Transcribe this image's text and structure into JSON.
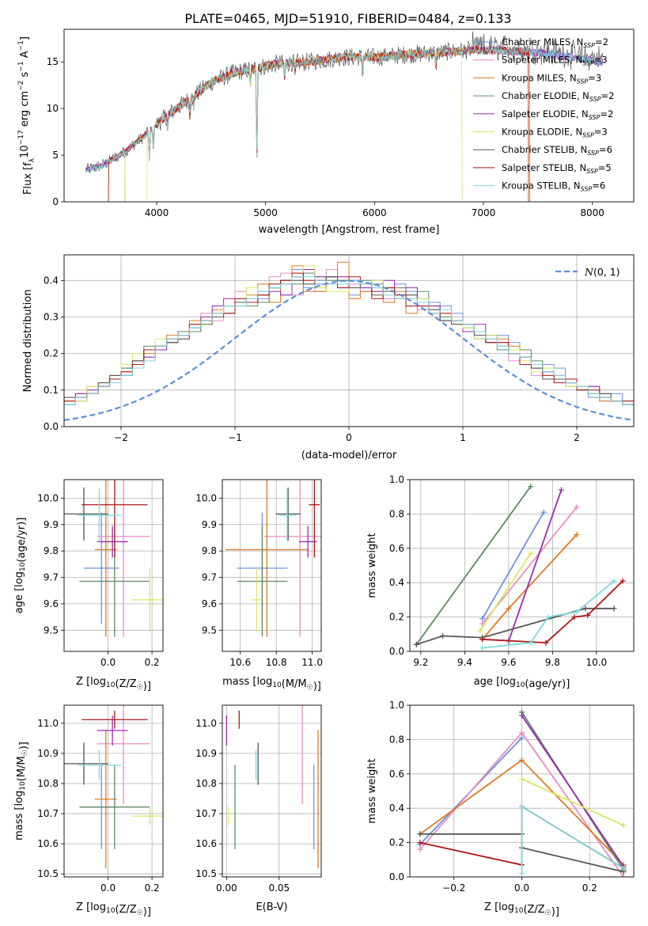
{
  "figure_title": "PLATE=0465, MJD=51910, FIBERID=0484, z=0.133",
  "colors": {
    "Chabrier MILES": "#6f8fe0",
    "Salpeter MILES": "#e88cc4",
    "Kroupa MILES": "#e07a20",
    "Chabrier ELODIE": "#5e8a62",
    "Salpeter ELODIE": "#9a2bb0",
    "Kroupa ELODIE": "#d8e860",
    "Chabrier STELIB": "#555555",
    "Salpeter STELIB": "#b01515",
    "Kroupa STELIB": "#80d8dd",
    "gaussian": "#5b8fd8",
    "grid": "#b0b0b0"
  },
  "legend_spectrum": [
    {
      "model": "Chabrier MILES",
      "base": "Chabrier MILES, N",
      "sub": "SSP",
      "tail": "=2"
    },
    {
      "model": "Salpeter MILES",
      "base": "Salpeter MILES, N",
      "sub": "SSP",
      "tail": "=3"
    },
    {
      "model": "Kroupa MILES",
      "base": "Kroupa MILES, N",
      "sub": "SSP",
      "tail": "=3"
    },
    {
      "model": "Chabrier ELODIE",
      "base": "Chabrier ELODIE, N",
      "sub": "SSP",
      "tail": "=2"
    },
    {
      "model": "Salpeter ELODIE",
      "base": "Salpeter ELODIE, N",
      "sub": "SSP",
      "tail": "=2"
    },
    {
      "model": "Kroupa ELODIE",
      "base": "Kroupa ELODIE, N",
      "sub": "SSP",
      "tail": "=3"
    },
    {
      "model": "Chabrier STELIB",
      "base": "Chabrier STELIB, N",
      "sub": "SSP",
      "tail": "=6"
    },
    {
      "model": "Salpeter STELIB",
      "base": "Salpeter STELIB, N",
      "sub": "SSP",
      "tail": "=5"
    },
    {
      "model": "Kroupa STELIB",
      "base": "Kroupa STELIB, N",
      "sub": "SSP",
      "tail": "=6"
    }
  ],
  "chart_data": [
    {
      "id": "spectrum",
      "type": "line",
      "xlabel": "wavelength [Angstrom, rest frame]",
      "ylabel": "Flux [f_λ10^-17 erg cm^-2 s^-1 A^-1]",
      "xlim": [
        3150,
        8380
      ],
      "ylim": [
        0,
        18.5
      ],
      "xticks": [
        4000,
        5000,
        6000,
        7000,
        8000
      ],
      "yticks": [
        0,
        5,
        10,
        15
      ],
      "grid": false,
      "legend": "right",
      "observed_range": [
        3350,
        8100
      ],
      "continuum_knots": [
        [
          3350,
          3.4
        ],
        [
          3500,
          3.9
        ],
        [
          3700,
          5.3
        ],
        [
          3900,
          7.2
        ],
        [
          4100,
          9.3
        ],
        [
          4300,
          11.0
        ],
        [
          4500,
          12.8
        ],
        [
          4700,
          13.8
        ],
        [
          4900,
          14.3
        ],
        [
          5100,
          14.8
        ],
        [
          5400,
          15.0
        ],
        [
          5700,
          15.5
        ],
        [
          6000,
          15.5
        ],
        [
          6300,
          15.8
        ],
        [
          6600,
          16.0
        ],
        [
          6900,
          16.3
        ],
        [
          7200,
          16.2
        ],
        [
          7500,
          16.0
        ],
        [
          7800,
          15.5
        ],
        [
          8100,
          15.0
        ]
      ],
      "absorption_features": [
        [
          3933,
          3
        ],
        [
          3969,
          2
        ],
        [
          4101,
          1.5
        ],
        [
          4304,
          1.8
        ],
        [
          4340,
          1.2
        ],
        [
          4861,
          1.5
        ],
        [
          4920,
          10
        ],
        [
          5175,
          1.5
        ],
        [
          5270,
          1.0
        ],
        [
          5890,
          1.8
        ],
        [
          6563,
          1.5
        ]
      ],
      "model_drops": [
        {
          "model": "Kroupa MILES",
          "from": 3560,
          "to": 7410
        },
        {
          "model": "Kroupa ELODIE",
          "from": 3910,
          "to": 6800
        },
        {
          "model": "Salpeter STELIB",
          "from": 3560,
          "to": 7420
        }
      ]
    },
    {
      "id": "residuals",
      "type": "histogram",
      "xlabel": "(data-model)/error",
      "ylabel": "Normed distribution",
      "xlim": [
        -2.5,
        2.5
      ],
      "ylim": [
        0,
        0.47
      ],
      "xticks": [
        -2,
        -1,
        0,
        1,
        2
      ],
      "yticks": [
        0.0,
        0.1,
        0.2,
        0.3,
        0.4
      ],
      "grid": true,
      "legend": "top-right",
      "legend_label": "N(0,1)",
      "bin_width": 0.1
    },
    {
      "id": "age_vs_Z",
      "type": "errorbar",
      "xlabel": "Z [log10(Z/Z☉)]",
      "ylabel": "age  [log10(age/yr)]",
      "xlim": [
        -0.2,
        0.25
      ],
      "ylim": [
        9.42,
        10.07
      ],
      "xticks": [
        0.0,
        0.2
      ],
      "yticks": [
        9.5,
        9.6,
        9.7,
        9.8,
        9.9,
        10.0
      ],
      "grid": true
    },
    {
      "id": "age_vs_mass",
      "type": "errorbar",
      "xlabel": "mass [log10(M/M☉)]",
      "xlim": [
        10.5,
        11.05
      ],
      "ylim": [
        9.42,
        10.07
      ],
      "xticks": [
        10.6,
        10.8,
        11.0
      ],
      "yticks": [
        9.5,
        9.6,
        9.7,
        9.8,
        9.9,
        10.0
      ],
      "grid": true
    },
    {
      "id": "mass_weight_vs_age",
      "type": "line",
      "xlabel": "age  [log10(age/yr)]",
      "ylabel": "mass weight",
      "xlim": [
        9.15,
        10.17
      ],
      "ylim": [
        0,
        1.0
      ],
      "xticks": [
        9.2,
        9.4,
        9.6,
        9.8,
        10.0
      ],
      "yticks": [
        0.0,
        0.2,
        0.4,
        0.6,
        0.8,
        1.0
      ],
      "grid": true
    },
    {
      "id": "mass_vs_Z",
      "type": "errorbar",
      "xlabel": "Z [log10(Z/Z☉)]",
      "ylabel": "mass [log10(M/M☉)]",
      "xlim": [
        -0.2,
        0.25
      ],
      "ylim": [
        10.49,
        11.06
      ],
      "xticks": [
        0.0,
        0.2
      ],
      "yticks": [
        10.5,
        10.6,
        10.7,
        10.8,
        10.9,
        11.0
      ],
      "grid": true
    },
    {
      "id": "mass_vs_ebv",
      "type": "errorbar",
      "xlabel": "E(B-V)",
      "xlim": [
        -0.004,
        0.09
      ],
      "ylim": [
        10.49,
        11.06
      ],
      "xticks": [
        0.0,
        0.05
      ],
      "yticks": [
        10.5,
        10.6,
        10.7,
        10.8,
        10.9,
        11.0
      ],
      "grid": true
    },
    {
      "id": "mass_weight_vs_Z",
      "type": "line",
      "xlabel": "Z [log10(Z/Z☉)]",
      "ylabel": "mass weight",
      "xlim": [
        -0.33,
        0.33
      ],
      "ylim": [
        0,
        1.0
      ],
      "xticks": [
        -0.2,
        0.0,
        0.2
      ],
      "yticks": [
        0.0,
        0.2,
        0.4,
        0.6,
        0.8,
        1.0
      ],
      "grid": true
    }
  ],
  "models": [
    {
      "name": "Chabrier MILES",
      "Z": -0.03,
      "Z_err": 0.08,
      "age": 9.735,
      "age_err": 0.21,
      "mass": 10.722,
      "mass_err": 0.14,
      "ebv": 0.083,
      "ssp_age": [
        [
          9.48,
          0.19
        ],
        [
          9.76,
          0.81
        ]
      ],
      "ssp_Z": [
        [
          -0.3,
          0.19
        ],
        [
          0.0,
          0.81
        ]
      ],
      "hist": [
        0.03,
        0.03,
        0.04,
        0.05,
        0.06,
        0.06,
        0.07,
        0.09,
        0.12,
        0.13,
        0.16,
        0.17,
        0.19,
        0.22,
        0.23,
        0.24,
        0.26,
        0.29,
        0.31,
        0.31,
        0.34,
        0.34,
        0.35,
        0.38,
        0.36,
        0.43,
        0.38,
        0.39,
        0.41,
        0.38,
        0.36,
        0.38,
        0.4,
        0.37,
        0.39,
        0.37,
        0.35,
        0.34,
        0.33,
        0.31,
        0.26,
        0.24,
        0.24,
        0.25,
        0.23,
        0.21,
        0.16,
        0.17,
        0.16,
        0.12,
        0.11,
        0.08,
        0.09,
        0.09,
        0.06,
        0.06,
        0.04,
        0.04,
        0.04,
        0.03
      ]
    },
    {
      "name": "Salpeter MILES",
      "Z": 0.07,
      "Z_err": 0.12,
      "age": 9.855,
      "age_err": 0.38,
      "mass": 10.932,
      "mass_err": 0.2,
      "ebv": 0.072,
      "ssp_age": [
        [
          9.48,
          0.16
        ],
        [
          9.91,
          0.84
        ]
      ],
      "ssp_Z": [
        [
          -0.3,
          0.16
        ],
        [
          0.0,
          0.84
        ],
        [
          0.3,
          0.0
        ]
      ],
      "hist": [
        0.04,
        0.03,
        0.04,
        0.05,
        0.06,
        0.08,
        0.07,
        0.11,
        0.11,
        0.14,
        0.15,
        0.17,
        0.21,
        0.21,
        0.24,
        0.24,
        0.27,
        0.31,
        0.29,
        0.33,
        0.37,
        0.35,
        0.37,
        0.41,
        0.42,
        0.36,
        0.39,
        0.37,
        0.43,
        0.41,
        0.39,
        0.37,
        0.37,
        0.35,
        0.35,
        0.33,
        0.32,
        0.32,
        0.29,
        0.28,
        0.26,
        0.26,
        0.23,
        0.22,
        0.18,
        0.17,
        0.14,
        0.13,
        0.13,
        0.12,
        0.11,
        0.09,
        0.07,
        0.07,
        0.06,
        0.06,
        0.05,
        0.04,
        0.03,
        0.03
      ]
    },
    {
      "name": "Kroupa MILES",
      "Z": -0.01,
      "Z_err": 0.05,
      "age": 9.805,
      "age_err": 0.33,
      "mass": 10.748,
      "mass_err": 0.23,
      "ebv": 0.087,
      "ssp_age": [
        [
          9.48,
          0.07
        ],
        [
          9.6,
          0.25
        ],
        [
          9.91,
          0.68
        ]
      ],
      "ssp_Z": [
        [
          -0.3,
          0.25
        ],
        [
          0.0,
          0.68
        ],
        [
          0.3,
          0.07
        ]
      ],
      "hist": [
        0.03,
        0.04,
        0.05,
        0.05,
        0.06,
        0.07,
        0.09,
        0.09,
        0.11,
        0.14,
        0.15,
        0.18,
        0.2,
        0.22,
        0.25,
        0.26,
        0.29,
        0.28,
        0.32,
        0.31,
        0.34,
        0.36,
        0.39,
        0.34,
        0.39,
        0.44,
        0.37,
        0.37,
        0.41,
        0.45,
        0.35,
        0.37,
        0.38,
        0.34,
        0.37,
        0.31,
        0.34,
        0.33,
        0.31,
        0.28,
        0.26,
        0.26,
        0.25,
        0.24,
        0.22,
        0.17,
        0.16,
        0.15,
        0.13,
        0.11,
        0.1,
        0.09,
        0.07,
        0.07,
        0.06,
        0.05,
        0.05,
        0.04,
        0.04,
        0.03
      ]
    },
    {
      "name": "Chabrier ELODIE",
      "Z": 0.03,
      "Z_err": 0.16,
      "age": 9.685,
      "age_err": 0.21,
      "mass": 10.722,
      "mass_err": 0.14,
      "ebv": 0.008,
      "ssp_age": [
        [
          9.18,
          0.04
        ],
        [
          9.7,
          0.96
        ]
      ],
      "ssp_Z": [
        [
          0.0,
          0.96
        ],
        [
          0.3,
          0.04
        ]
      ],
      "hist": [
        0.03,
        0.03,
        0.04,
        0.05,
        0.07,
        0.06,
        0.08,
        0.09,
        0.11,
        0.13,
        0.16,
        0.18,
        0.22,
        0.22,
        0.23,
        0.26,
        0.26,
        0.28,
        0.3,
        0.33,
        0.33,
        0.33,
        0.34,
        0.38,
        0.39,
        0.39,
        0.42,
        0.41,
        0.4,
        0.4,
        0.4,
        0.4,
        0.39,
        0.37,
        0.38,
        0.36,
        0.37,
        0.33,
        0.3,
        0.29,
        0.27,
        0.26,
        0.25,
        0.21,
        0.21,
        0.21,
        0.18,
        0.15,
        0.13,
        0.12,
        0.1,
        0.11,
        0.09,
        0.07,
        0.07,
        0.06,
        0.05,
        0.04,
        0.04,
        0.04
      ]
    },
    {
      "name": "Salpeter ELODIE",
      "Z": 0.02,
      "Z_err": 0.07,
      "age": 9.835,
      "age_err": 0.06,
      "mass": 10.976,
      "mass_err": 0.05,
      "ebv": 0.0,
      "ssp_age": [
        [
          9.6,
          0.06
        ],
        [
          9.84,
          0.94
        ]
      ],
      "ssp_Z": [
        [
          0.0,
          0.94
        ],
        [
          0.3,
          0.06
        ]
      ],
      "hist": [
        0.03,
        0.04,
        0.04,
        0.04,
        0.06,
        0.07,
        0.09,
        0.1,
        0.11,
        0.13,
        0.14,
        0.18,
        0.19,
        0.21,
        0.23,
        0.25,
        0.28,
        0.3,
        0.33,
        0.35,
        0.34,
        0.34,
        0.36,
        0.37,
        0.36,
        0.41,
        0.43,
        0.41,
        0.41,
        0.41,
        0.4,
        0.38,
        0.37,
        0.4,
        0.36,
        0.38,
        0.33,
        0.33,
        0.29,
        0.29,
        0.26,
        0.28,
        0.23,
        0.22,
        0.21,
        0.19,
        0.17,
        0.15,
        0.14,
        0.12,
        0.11,
        0.11,
        0.08,
        0.07,
        0.06,
        0.05,
        0.04,
        0.05,
        0.03,
        0.03
      ]
    },
    {
      "name": "Kroupa ELODIE",
      "Z": 0.19,
      "Z_err": 0.08,
      "age": 9.615,
      "age_err": 0.12,
      "mass": 10.692,
      "mass_err": 0.03,
      "ebv": 0.002,
      "ssp_age": [
        [
          9.47,
          0.12
        ],
        [
          9.7,
          0.57
        ]
      ],
      "ssp_Z": [
        [
          0.0,
          0.57
        ],
        [
          0.3,
          0.3
        ]
      ],
      "hist": [
        0.03,
        0.04,
        0.04,
        0.05,
        0.06,
        0.07,
        0.07,
        0.11,
        0.12,
        0.13,
        0.17,
        0.2,
        0.21,
        0.24,
        0.24,
        0.24,
        0.28,
        0.29,
        0.31,
        0.33,
        0.35,
        0.38,
        0.36,
        0.39,
        0.4,
        0.42,
        0.44,
        0.38,
        0.37,
        0.37,
        0.38,
        0.39,
        0.4,
        0.36,
        0.35,
        0.35,
        0.35,
        0.31,
        0.31,
        0.28,
        0.27,
        0.24,
        0.25,
        0.22,
        0.21,
        0.18,
        0.15,
        0.16,
        0.13,
        0.11,
        0.11,
        0.09,
        0.08,
        0.07,
        0.06,
        0.06,
        0.05,
        0.04,
        0.04,
        0.03
      ]
    },
    {
      "name": "Chabrier STELIB",
      "Z": -0.11,
      "Z_err": 0.11,
      "age": 9.94,
      "age_err": 0.1,
      "mass": 10.866,
      "mass_err": 0.07,
      "ebv": 0.03,
      "ssp_age": [
        [
          9.18,
          0.04
        ],
        [
          9.3,
          0.09
        ],
        [
          9.48,
          0.08
        ],
        [
          9.95,
          0.25
        ],
        [
          10.08,
          0.25
        ]
      ],
      "ssp_Z": [
        [
          -0.3,
          0.25
        ],
        [
          0.0,
          0.25
        ],
        [
          0.0,
          0.17
        ],
        [
          0.3,
          0.03
        ]
      ],
      "hist": [
        0.04,
        0.04,
        0.04,
        0.05,
        0.06,
        0.08,
        0.08,
        0.09,
        0.12,
        0.14,
        0.14,
        0.18,
        0.21,
        0.22,
        0.23,
        0.24,
        0.27,
        0.29,
        0.3,
        0.31,
        0.34,
        0.34,
        0.36,
        0.38,
        0.4,
        0.4,
        0.39,
        0.4,
        0.41,
        0.4,
        0.38,
        0.39,
        0.36,
        0.38,
        0.35,
        0.36,
        0.34,
        0.32,
        0.29,
        0.28,
        0.28,
        0.25,
        0.23,
        0.23,
        0.2,
        0.19,
        0.16,
        0.13,
        0.13,
        0.13,
        0.1,
        0.09,
        0.09,
        0.07,
        0.06,
        0.05,
        0.05,
        0.04,
        0.04,
        0.03
      ]
    },
    {
      "name": "Salpeter STELIB",
      "Z": 0.03,
      "Z_err": 0.15,
      "age": 9.975,
      "age_err": 0.2,
      "mass": 11.012,
      "mass_err": 0.03,
      "ebv": 0.012,
      "ssp_age": [
        [
          9.48,
          0.07
        ],
        [
          9.77,
          0.05
        ],
        [
          9.9,
          0.2
        ],
        [
          9.96,
          0.21
        ],
        [
          10.12,
          0.41
        ]
      ],
      "ssp_Z": [
        [
          -0.3,
          0.2
        ],
        [
          0.0,
          0.07
        ],
        [
          0.0,
          0.41
        ],
        [
          0.3,
          0.05
        ]
      ],
      "hist": [
        0.03,
        0.04,
        0.04,
        0.05,
        0.06,
        0.07,
        0.08,
        0.09,
        0.11,
        0.13,
        0.15,
        0.17,
        0.21,
        0.22,
        0.24,
        0.25,
        0.28,
        0.29,
        0.31,
        0.31,
        0.35,
        0.34,
        0.36,
        0.39,
        0.4,
        0.42,
        0.4,
        0.4,
        0.39,
        0.38,
        0.41,
        0.39,
        0.35,
        0.38,
        0.36,
        0.33,
        0.33,
        0.31,
        0.31,
        0.29,
        0.28,
        0.26,
        0.23,
        0.23,
        0.2,
        0.17,
        0.17,
        0.14,
        0.12,
        0.13,
        0.1,
        0.1,
        0.08,
        0.07,
        0.07,
        0.05,
        0.05,
        0.04,
        0.03,
        0.03
      ]
    },
    {
      "name": "Kroupa STELIB",
      "Z": -0.04,
      "Z_err": 0.1,
      "age": 9.935,
      "age_err": 0.1,
      "mass": 10.861,
      "mass_err": 0.05,
      "ebv": 0.028,
      "ssp_age": [
        [
          9.48,
          0.02
        ],
        [
          9.7,
          0.05
        ],
        [
          9.78,
          0.2
        ],
        [
          9.91,
          0.23
        ],
        [
          10.08,
          0.41
        ]
      ],
      "ssp_Z": [
        [
          0.0,
          0.02
        ],
        [
          0.0,
          0.41
        ],
        [
          0.3,
          0.05
        ]
      ],
      "hist": [
        0.03,
        0.03,
        0.04,
        0.05,
        0.05,
        0.06,
        0.08,
        0.09,
        0.11,
        0.12,
        0.14,
        0.16,
        0.18,
        0.22,
        0.24,
        0.25,
        0.27,
        0.29,
        0.31,
        0.33,
        0.33,
        0.35,
        0.37,
        0.38,
        0.39,
        0.41,
        0.41,
        0.4,
        0.39,
        0.39,
        0.4,
        0.39,
        0.38,
        0.36,
        0.35,
        0.35,
        0.34,
        0.31,
        0.32,
        0.29,
        0.28,
        0.26,
        0.24,
        0.22,
        0.2,
        0.19,
        0.17,
        0.15,
        0.14,
        0.12,
        0.11,
        0.09,
        0.08,
        0.07,
        0.06,
        0.06,
        0.05,
        0.04,
        0.03,
        0.03
      ]
    }
  ]
}
